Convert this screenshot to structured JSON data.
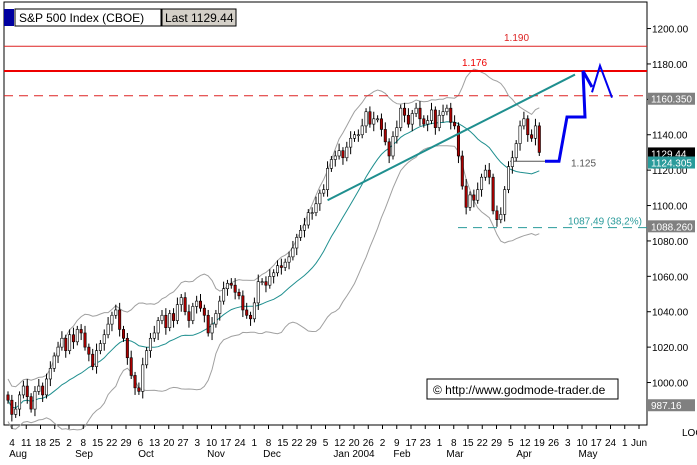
{
  "header": {
    "index_label": "S&P 500 Index (CBOE)",
    "last_label": "Last",
    "last_value": "1129.44"
  },
  "watermark": "© http://www.godmode-trader.de",
  "chart_data": {
    "type": "candlestick",
    "ylim": [
      976,
      1215
    ],
    "y_ticks": [
      1000,
      1020,
      1040,
      1060,
      1080,
      1100,
      1120,
      1140,
      1160,
      1180,
      1200
    ],
    "y_tick_labels": [
      "1000.00",
      "1020.00",
      "1040.00",
      "1060.00",
      "1080.00",
      "1100.00",
      "1120.00",
      "1140.00",
      "1160.00",
      "1180.00",
      "1200.00"
    ],
    "y_axis_corner_label": "LOG",
    "x_day_labels": [
      "4",
      "11",
      "18",
      "25",
      "2",
      "8",
      "15",
      "22",
      "29",
      "6",
      "13",
      "20",
      "27",
      "3",
      "10",
      "17",
      "24",
      "1",
      "8",
      "15",
      "22",
      "29",
      "5",
      "12",
      "20",
      "26",
      "2",
      "9",
      "17",
      "23",
      "1",
      "8",
      "15",
      "22",
      "29",
      "5",
      "12",
      "19",
      "26",
      "3",
      "10",
      "17",
      "24",
      "1",
      "Jun"
    ],
    "x_month_labels": [
      "Aug",
      "Sep",
      "Oct",
      "Nov",
      "Dec",
      "Jan 2004",
      "Feb",
      "Mar",
      "Apr",
      "May"
    ],
    "price_tags": [
      {
        "label": "1160.350",
        "value": 1160.35,
        "color": "#808080"
      },
      {
        "label": "1129.44",
        "value": 1129.44,
        "color": "#000000"
      },
      {
        "label": "1124.305",
        "value": 1124.305,
        "color": "#2a9b9b"
      },
      {
        "label": "1088.260",
        "value": 1088.26,
        "color": "#808080"
      },
      {
        "label": "987.16",
        "value": 987.16,
        "color": "#808080"
      }
    ],
    "horizontal_lines": [
      {
        "value": 1190,
        "label": "1.190",
        "style": "solid-thin",
        "color": "#dd2222"
      },
      {
        "value": 1176,
        "label": "1.176",
        "style": "solid-thick",
        "color": "#ee0000"
      },
      {
        "value": 1162,
        "label": "",
        "style": "dashed",
        "color": "#dd2222"
      },
      {
        "value": 1087.49,
        "label": "1087,49 (38,2%)",
        "style": "dashed",
        "color": "#2a9b9b"
      },
      {
        "value": 1125,
        "label": "1.125",
        "style": "solid-short",
        "color": "#555555"
      }
    ],
    "trendline": {
      "from": [
        1103,
        1174
      ],
      "color": "#1f8f8f"
    },
    "forecast_path": [
      1125,
      1125,
      1150,
      1150,
      1176,
      1167,
      1179,
      1161
    ],
    "closes": [
      990,
      982,
      985,
      993,
      998,
      992,
      985,
      995,
      998,
      993,
      1002,
      1008,
      1015,
      1020,
      1025,
      1018,
      1027,
      1023,
      1030,
      1028,
      1020,
      1016,
      1009,
      1018,
      1022,
      1027,
      1033,
      1038,
      1041,
      1030,
      1025,
      1014,
      1004,
      997,
      995,
      1010,
      1018,
      1025,
      1028,
      1035,
      1038,
      1031,
      1039,
      1035,
      1044,
      1048,
      1040,
      1035,
      1043,
      1046,
      1042,
      1038,
      1028,
      1033,
      1039,
      1046,
      1053,
      1056,
      1055,
      1051,
      1049,
      1041,
      1038,
      1036,
      1045,
      1057,
      1057,
      1055,
      1060,
      1062,
      1066,
      1065,
      1068,
      1071,
      1076,
      1082,
      1086,
      1089,
      1096,
      1096,
      1101,
      1107,
      1109,
      1121,
      1126,
      1128,
      1131,
      1127,
      1133,
      1138,
      1140,
      1140,
      1145,
      1153,
      1146,
      1149,
      1149,
      1143,
      1136,
      1128,
      1139,
      1144,
      1155,
      1151,
      1146,
      1152,
      1155,
      1149,
      1146,
      1148,
      1154,
      1144,
      1151,
      1153,
      1155,
      1147,
      1145,
      1128,
      1111,
      1099,
      1106,
      1103,
      1109,
      1116,
      1120,
      1116,
      1097,
      1092,
      1095,
      1109,
      1122,
      1127,
      1135,
      1145,
      1149,
      1140,
      1138,
      1145,
      1130
    ],
    "bands": {
      "mid_color": "#1f8f8f",
      "outer_color": "#a0a0a0"
    }
  }
}
